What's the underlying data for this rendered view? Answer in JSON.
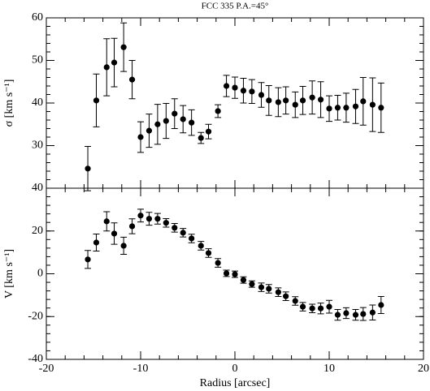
{
  "chart_data": [
    {
      "type": "scatter",
      "title": "FCC 335   P.A.=45°",
      "ylabel": "σ [km s⁻¹]",
      "xlim": [
        -20,
        20
      ],
      "xticks": [
        -20,
        -10,
        0,
        10,
        20
      ],
      "ylim": [
        20,
        60
      ],
      "yticks": [
        30,
        40,
        50,
        60
      ],
      "series": [
        {
          "color": "#000000",
          "x": [
            -15.6,
            -14.7,
            -13.6,
            -12.8,
            -11.8,
            -10.9,
            -10.0,
            -9.1,
            -8.2,
            -7.3,
            -6.4,
            -5.5,
            -4.6,
            -3.6,
            -2.8,
            -1.8,
            -0.9,
            0,
            0.9,
            1.8,
            2.8,
            3.6,
            4.6,
            5.4,
            6.4,
            7.2,
            8.2,
            9.1,
            10.0,
            10.9,
            11.8,
            12.8,
            13.6,
            14.6,
            15.5
          ],
          "values": [
            24.6,
            40.6,
            48.4,
            49.5,
            53.1,
            45.5,
            32.0,
            33.5,
            35.0,
            35.8,
            37.5,
            36.2,
            35.4,
            31.8,
            33.3,
            38.1,
            44.0,
            43.6,
            42.9,
            42.7,
            41.9,
            40.6,
            40.2,
            40.6,
            39.6,
            40.6,
            41.3,
            40.8,
            38.7,
            38.9,
            38.9,
            39.2,
            40.4,
            39.6,
            38.9
          ],
          "errors": [
            5.2,
            6.2,
            6.7,
            5.7,
            5.7,
            4.5,
            3.6,
            3.9,
            4.7,
            4.1,
            3.5,
            3.2,
            3.0,
            1.3,
            1.7,
            1.5,
            2.5,
            2.5,
            2.9,
            2.8,
            2.9,
            3.5,
            3.4,
            3.2,
            3.0,
            3.3,
            3.9,
            4.2,
            3.0,
            2.9,
            3.4,
            4.0,
            5.6,
            6.3,
            5.8
          ]
        }
      ]
    },
    {
      "type": "scatter",
      "ylabel": "V [km s⁻¹]",
      "xlabel": "Radius [arcsec]",
      "xlim": [
        -20,
        20
      ],
      "xticks": [
        -20,
        -10,
        0,
        10,
        20
      ],
      "ylim": [
        -40,
        40
      ],
      "yticks": [
        -40,
        -20,
        0,
        20,
        40
      ],
      "series": [
        {
          "color": "#000000",
          "x": [
            -15.6,
            -14.7,
            -13.6,
            -12.8,
            -11.8,
            -10.9,
            -10.0,
            -9.1,
            -8.2,
            -7.3,
            -6.4,
            -5.5,
            -4.6,
            -3.6,
            -2.8,
            -1.8,
            -0.9,
            0,
            0.9,
            1.8,
            2.8,
            3.6,
            4.6,
            5.4,
            6.4,
            7.2,
            8.2,
            9.1,
            10.0,
            10.9,
            11.8,
            12.8,
            13.6,
            14.6,
            15.5
          ],
          "values": [
            6.7,
            14.6,
            24.5,
            18.8,
            13.1,
            22.2,
            27.2,
            25.7,
            25.7,
            23.8,
            21.5,
            19.2,
            16.5,
            13.1,
            9.7,
            5.1,
            0.2,
            -0.2,
            -2.9,
            -4.8,
            -6.3,
            -7.0,
            -8.6,
            -10.5,
            -12.7,
            -15.4,
            -16.2,
            -16.2,
            -15.4,
            -19.2,
            -18.4,
            -19.2,
            -18.8,
            -18.1,
            -14.6
          ],
          "errors": [
            4.2,
            4,
            4.5,
            5,
            4,
            3.5,
            3,
            3,
            2.5,
            2,
            2,
            2,
            2,
            2,
            2,
            2,
            1.5,
            1.5,
            1.5,
            1.5,
            2,
            2,
            2,
            2,
            2,
            2,
            2,
            2.5,
            3,
            2.5,
            2.5,
            2.5,
            3,
            3.5,
            4
          ]
        }
      ]
    }
  ]
}
